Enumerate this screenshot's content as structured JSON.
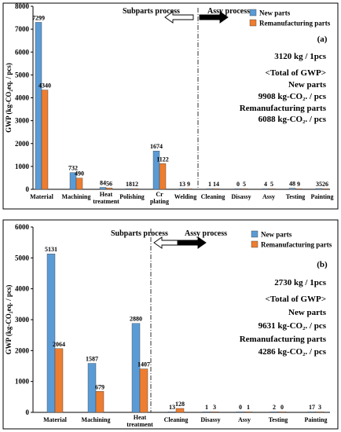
{
  "chart_data": [
    {
      "type": "bar",
      "panel_label": "(a)",
      "ylabel": "GWP (kg-CO₂eq. / pcs)",
      "ylim": [
        0,
        8000
      ],
      "yticks": [
        0,
        1000,
        2000,
        3000,
        4000,
        5000,
        6000,
        7000,
        8000
      ],
      "categories": [
        "Material",
        "Machining",
        "Heat treatment",
        "Polishing",
        "Cr plating",
        "Welding",
        "Cleaning",
        "Disassy",
        "Assy",
        "Testing",
        "Painting"
      ],
      "series": [
        {
          "name": "New parts",
          "color": "#5b9bd5",
          "values": [
            7299,
            732,
            84,
            18,
            1674,
            13,
            1,
            0,
            4,
            48,
            35
          ]
        },
        {
          "name": "Remanufacturing parts",
          "color": "#ed7d31",
          "values": [
            4340,
            490,
            56,
            12,
            1122,
            9,
            14,
            5,
            5,
            9,
            26
          ]
        }
      ],
      "data_labels": [
        [
          "7299",
          "732",
          "84",
          "18",
          "1674",
          "13",
          "1",
          "0",
          "4",
          "48",
          "35"
        ],
        [
          "4340",
          "490",
          "56",
          "12",
          "1122",
          "9",
          "14",
          "5",
          "5",
          "9",
          "26"
        ]
      ],
      "divider_after_index": 5,
      "process_labels": {
        "left": "Subparts process",
        "right": "Assy process"
      },
      "annotation_lines": [
        "3120 kg / 1pcs",
        "<Total of GWP>",
        "New parts",
        "9908 kg-CO₂. / pcs",
        "Remanufacturing parts",
        "6088 kg-CO₂. / pcs"
      ],
      "legend_position": "top-right",
      "grid": false
    },
    {
      "type": "bar",
      "panel_label": "(b)",
      "ylabel": "GWP (kg-CO₂eq. / pcs)",
      "ylim": [
        0,
        6000
      ],
      "yticks": [
        0,
        1000,
        2000,
        3000,
        4000,
        5000,
        6000
      ],
      "categories": [
        "Material",
        "Machining",
        "Heat treatment",
        "Cleaning",
        "Disassy",
        "Assy",
        "Testing",
        "Painting"
      ],
      "series": [
        {
          "name": "New parts",
          "color": "#5b9bd5",
          "values": [
            5131,
            1587,
            2880,
            13,
            1,
            0,
            2,
            17
          ]
        },
        {
          "name": "Remanufacturing parts",
          "color": "#ed7d31",
          "values": [
            2064,
            679,
            1407,
            128,
            3,
            1,
            0,
            3
          ]
        }
      ],
      "data_labels": [
        [
          "5131",
          "1587",
          "2880",
          "13",
          "1",
          "0",
          "2",
          "17"
        ],
        [
          "2064",
          "679",
          "1407",
          "128",
          "3",
          "1",
          "0",
          "3"
        ]
      ],
      "divider_after_index": 2,
      "process_labels": {
        "left": "Subparts process",
        "right": "Assy process"
      },
      "annotation_lines": [
        "2730 kg / 1pcs",
        "<Total of GWP>",
        "New parts",
        "9631 kg-CO₂. / pcs",
        "Remanufacturing parts",
        "4286 kg-CO₂. / pcs"
      ],
      "legend_position": "top-right",
      "grid": false
    }
  ]
}
